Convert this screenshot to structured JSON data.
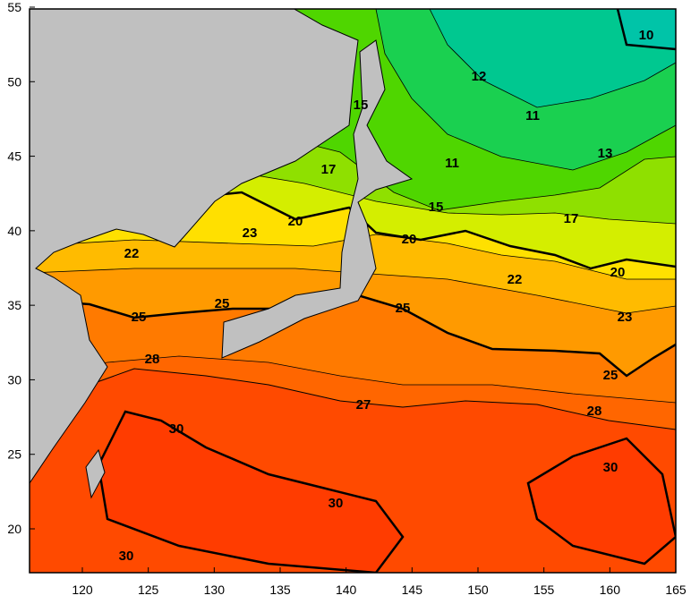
{
  "x_axis": {
    "ticks": [
      120,
      125,
      130,
      135,
      140,
      145,
      150,
      155,
      160,
      165
    ]
  },
  "y_axis": {
    "ticks": [
      20,
      25,
      30,
      35,
      40,
      45,
      50,
      55
    ]
  },
  "contour_labels": [
    10,
    12,
    11,
    11,
    13,
    15,
    17,
    15,
    17,
    20,
    23,
    20,
    22,
    22,
    20,
    25,
    25,
    25,
    23,
    28,
    25,
    27,
    28,
    30,
    30,
    30,
    30
  ]
}
